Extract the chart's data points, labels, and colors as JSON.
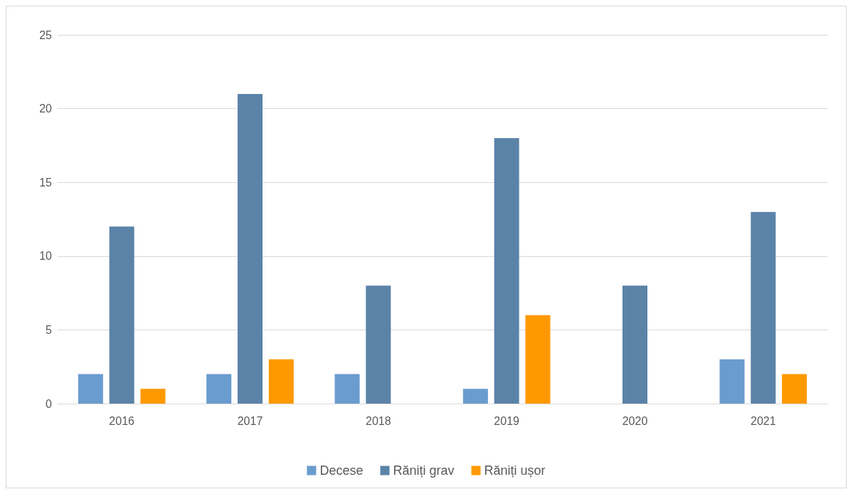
{
  "chart_data": {
    "type": "bar",
    "categories": [
      "2016",
      "2017",
      "2018",
      "2019",
      "2020",
      "2021"
    ],
    "series": [
      {
        "name": "Decese",
        "color": "#6a9ccf",
        "values": [
          2,
          2,
          2,
          1,
          0,
          3
        ]
      },
      {
        "name": "Răniți grav",
        "color": "#5b83a8",
        "values": [
          12,
          21,
          8,
          18,
          8,
          13
        ]
      },
      {
        "name": "Răniți ușor",
        "color": "#ff9900",
        "values": [
          1,
          3,
          0,
          6,
          0,
          2
        ]
      }
    ],
    "ylim": [
      0,
      25
    ],
    "yticks": [
      0,
      5,
      10,
      15,
      20,
      25
    ],
    "grid": "y",
    "legend": "bottom"
  }
}
